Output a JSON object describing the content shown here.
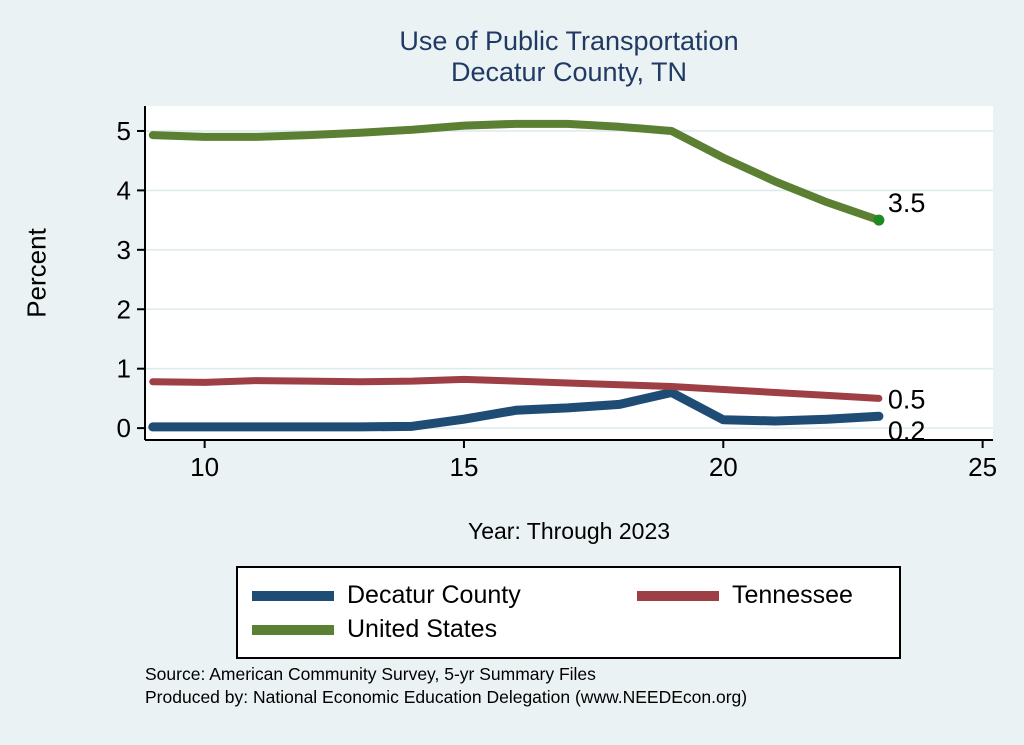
{
  "title": {
    "line1": "Use of Public Transportation",
    "line2": "Decatur County, TN",
    "color": "#203A64"
  },
  "chart_data": {
    "type": "line",
    "title": "Use of Public Transportation Decatur County, TN",
    "xlabel": "Year: Through 2023",
    "ylabel": "Percent",
    "x": [
      9,
      10,
      11,
      12,
      13,
      14,
      15,
      16,
      17,
      18,
      19,
      20,
      21,
      22,
      23
    ],
    "x_ticks": [
      10,
      15,
      20,
      25
    ],
    "y_ticks": [
      0,
      1,
      2,
      3,
      4,
      5
    ],
    "x_range": [
      8.85,
      25.2
    ],
    "y_range": [
      -0.2,
      5.42
    ],
    "grid": "horizontal",
    "legend_position": "bottom",
    "plot_background": "#FFFFFF",
    "page_background": "#EAF2F3",
    "gridline_color": "#DEEBEE",
    "series": [
      {
        "name": "Decatur County",
        "color": "#1E4C74",
        "values": [
          0.02,
          0.02,
          0.02,
          0.02,
          0.02,
          0.03,
          0.15,
          0.3,
          0.34,
          0.4,
          0.6,
          0.14,
          0.12,
          0.15,
          0.2
        ],
        "end_label": "0.2",
        "end_marker": false
      },
      {
        "name": "Tennessee",
        "color": "#9E3E45",
        "values": [
          0.78,
          0.77,
          0.8,
          0.79,
          0.78,
          0.79,
          0.82,
          0.79,
          0.76,
          0.73,
          0.7,
          0.65,
          0.6,
          0.55,
          0.5
        ],
        "end_label": "0.5",
        "end_marker": false
      },
      {
        "name": "United States",
        "color": "#5C8033",
        "values": [
          4.93,
          4.9,
          4.9,
          4.93,
          4.97,
          5.02,
          5.09,
          5.12,
          5.12,
          5.07,
          5.0,
          4.55,
          4.15,
          3.8,
          3.5
        ],
        "end_label": "3.5",
        "end_marker": true,
        "marker_color": "#1F8A1F"
      }
    ]
  },
  "footer": {
    "line1": "Source: American Community Survey, 5-yr Summary Files",
    "line2": "Produced by: National Economic Education Delegation (www.NEEDEcon.org)"
  }
}
